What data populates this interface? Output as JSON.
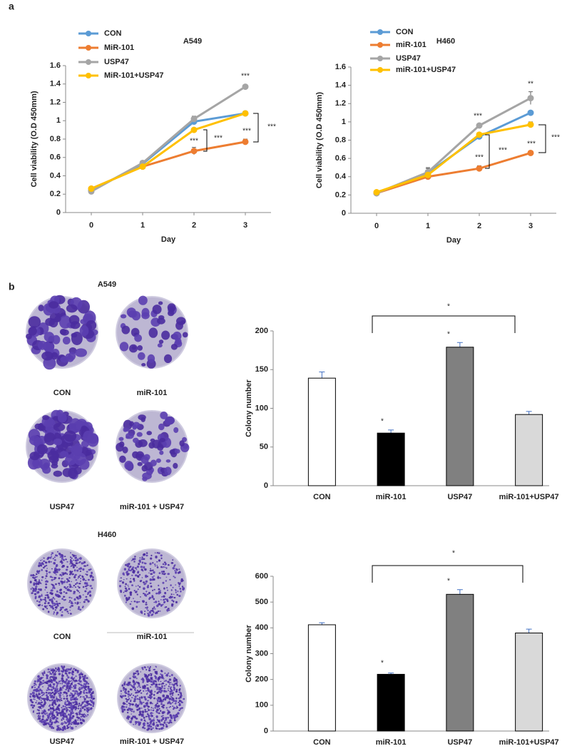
{
  "panel_labels": [
    "a",
    "b"
  ],
  "colony_images": [
    {
      "title": "A549",
      "labels": [
        "CON",
        "miR-101",
        "USP47",
        "miR-101 + USP47"
      ]
    },
    {
      "title": "H460",
      "labels": [
        "CON",
        "miR-101",
        "USP47",
        "miR-101 + USP47"
      ]
    }
  ],
  "chart_data": [
    {
      "type": "line",
      "title": "A549",
      "xlabel": "Day",
      "ylabel": "Cell viability (O.D 450mm)",
      "x": [
        0,
        1,
        2,
        3
      ],
      "xlim": [
        -0.5,
        3.5
      ],
      "xticks": [
        0,
        1,
        2,
        3
      ],
      "ylim": [
        0,
        1.6
      ],
      "yticks": [
        0,
        0.2,
        0.4,
        0.6,
        0.8,
        1,
        1.2,
        1.4,
        1.6
      ],
      "series": [
        {
          "name": "CON",
          "color": "#5b9bd5",
          "values": [
            0.24,
            0.53,
            0.99,
            1.08
          ],
          "errors": [
            0.01,
            0.02,
            0.03,
            0.02
          ]
        },
        {
          "name": "MiR-101",
          "color": "#ed7d31",
          "values": [
            0.26,
            0.5,
            0.67,
            0.77
          ],
          "errors": [
            0.01,
            0.02,
            0.04,
            0.03
          ]
        },
        {
          "name": "USP47",
          "color": "#a5a5a5",
          "values": [
            0.23,
            0.54,
            1.02,
            1.37
          ],
          "errors": [
            0.01,
            0.02,
            0.03,
            0.02
          ]
        },
        {
          "name": "MiR-101+USP47",
          "color": "#ffc000",
          "values": [
            0.26,
            0.5,
            0.9,
            1.08
          ],
          "errors": [
            0.01,
            0.02,
            0.02,
            0.02
          ]
        }
      ],
      "annotations": [
        "***",
        "***",
        "***",
        "***",
        "***"
      ]
    },
    {
      "type": "line",
      "title": "H460",
      "xlabel": "Day",
      "ylabel": "Cell viability (O.D 450mm)",
      "x": [
        0,
        1,
        2,
        3
      ],
      "xlim": [
        -0.5,
        3.5
      ],
      "xticks": [
        0,
        1,
        2,
        3
      ],
      "ylim": [
        0,
        1.6
      ],
      "yticks": [
        0,
        0.2,
        0.4,
        0.6,
        0.8,
        1,
        1.2,
        1.4,
        1.6
      ],
      "series": [
        {
          "name": "CON",
          "color": "#5b9bd5",
          "values": [
            0.22,
            0.44,
            0.84,
            1.1
          ],
          "errors": [
            0.01,
            0.05,
            0.02,
            0.02
          ]
        },
        {
          "name": "miR-101",
          "color": "#ed7d31",
          "values": [
            0.22,
            0.4,
            0.49,
            0.66
          ],
          "errors": [
            0.01,
            0.02,
            0.03,
            0.02
          ]
        },
        {
          "name": "USP47",
          "color": "#a5a5a5",
          "values": [
            0.22,
            0.45,
            0.96,
            1.26
          ],
          "errors": [
            0.01,
            0.05,
            0.02,
            0.07
          ]
        },
        {
          "name": "miR-101+USP47",
          "color": "#ffc000",
          "values": [
            0.23,
            0.42,
            0.86,
            0.97
          ],
          "errors": [
            0.01,
            0.02,
            0.02,
            0.03
          ]
        }
      ],
      "annotations": [
        "**",
        "***",
        "***",
        "***",
        "***",
        "***"
      ]
    },
    {
      "type": "bar",
      "ylabel": "Colony number",
      "categories": [
        "CON",
        "miR-101",
        "USP47",
        "miR-101+USP47"
      ],
      "values": [
        139,
        68,
        179,
        92
      ],
      "errors": [
        8,
        4,
        6,
        4
      ],
      "colors": [
        "#ffffff",
        "#000000",
        "#808080",
        "#d9d9d9"
      ],
      "ylim": [
        0,
        200
      ],
      "yticks": [
        0,
        50,
        100,
        150,
        200
      ],
      "annotations": [
        "*",
        "*",
        "*"
      ]
    },
    {
      "type": "bar",
      "ylabel": "Colony number",
      "categories": [
        "CON",
        "miR-101",
        "USP47",
        "miR-101+USP47"
      ],
      "values": [
        412,
        220,
        530,
        380
      ],
      "errors": [
        8,
        5,
        18,
        15
      ],
      "colors": [
        "#ffffff",
        "#000000",
        "#808080",
        "#d9d9d9"
      ],
      "ylim": [
        0,
        600
      ],
      "yticks": [
        0,
        100,
        200,
        300,
        400,
        500,
        600
      ],
      "annotations": [
        "*",
        "*",
        "*"
      ]
    }
  ]
}
